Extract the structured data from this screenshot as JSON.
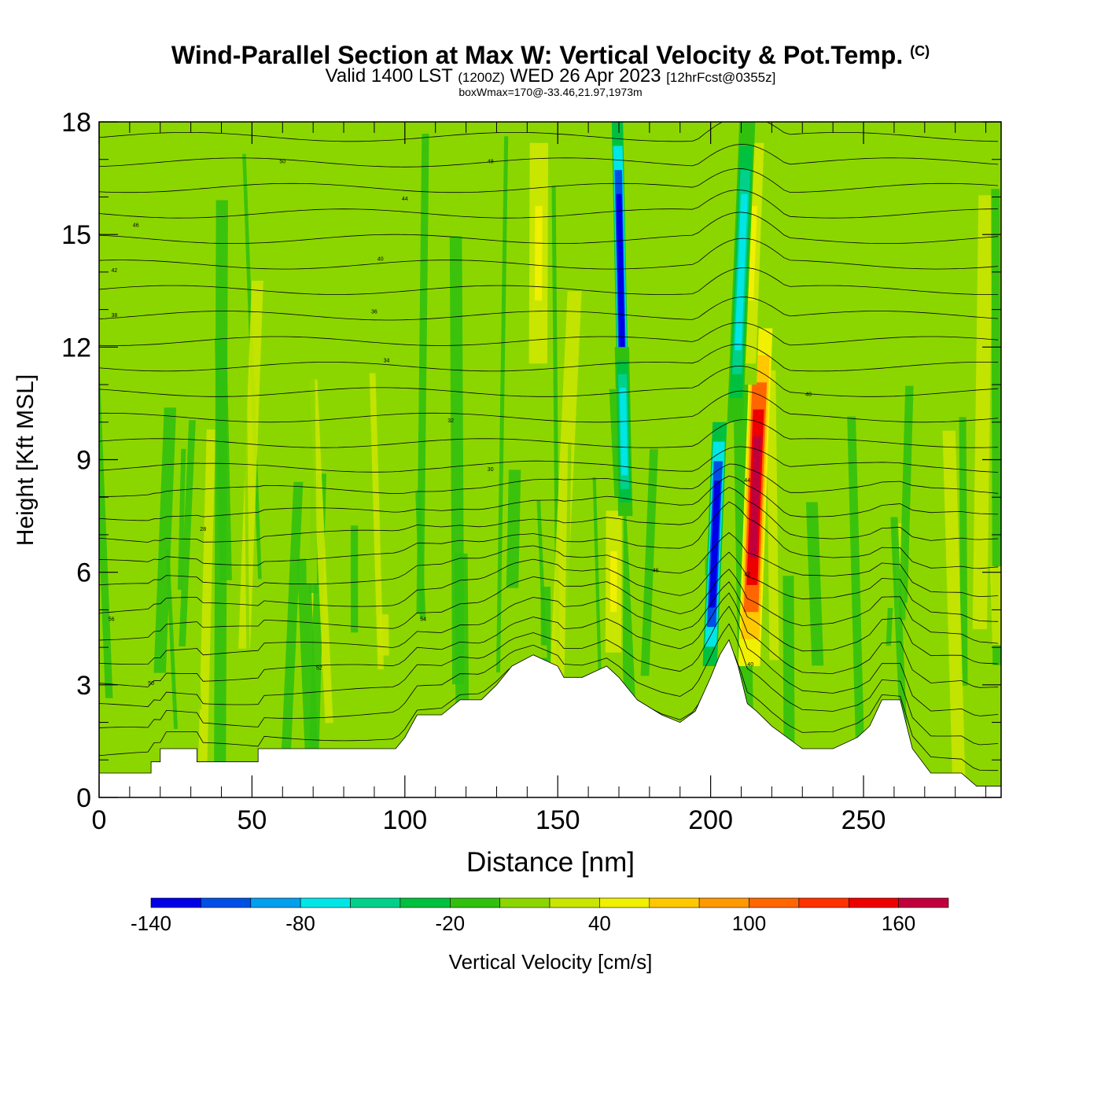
{
  "title": {
    "main": "Wind-Parallel Section at Max W: Vertical Velocity & Pot.Temp.",
    "copyright": "(C)",
    "valid_prefix": "Valid 1400 LST",
    "utc": "(1200Z)",
    "valid_date": "WED 26 Apr 2023",
    "forecast": "[12hrFcst@0355z]",
    "box_info": "boxWmax=170@-33.46,21.97,1973m"
  },
  "chart_data": {
    "type": "heatmap",
    "title": "Wind-Parallel Section at Max W: Vertical Velocity & Pot.Temp.",
    "xlabel": "Distance [nm]",
    "ylabel": "Height [Kft MSL]",
    "xlim": [
      0,
      295
    ],
    "ylim": [
      0,
      18
    ],
    "xticks": [
      "0",
      "50",
      "100",
      "150",
      "200",
      "250"
    ],
    "xtick_values": [
      0,
      50,
      100,
      150,
      200,
      250
    ],
    "yticks": [
      "0",
      "3",
      "6",
      "9",
      "12",
      "15",
      "18"
    ],
    "ytick_values": [
      0,
      3,
      6,
      9,
      12,
      15,
      18
    ],
    "background_w": 10,
    "updraft_features": [
      {
        "name": "updraft-max",
        "x_center_at_0kft": 211,
        "lean_nm_per_kft": 0.45,
        "width_nm": 6,
        "z_bottom_kft": 3.5,
        "z_top_kft": 12.5,
        "w_cm_s": 170
      },
      {
        "name": "updraft-upper-plume",
        "x_center_at_0kft": 207,
        "lean_nm_per_kft": 0.45,
        "width_nm": 5,
        "z_bottom_kft": 11,
        "z_top_kft": 18,
        "w_cm_s": 45
      },
      {
        "name": "updraft-west",
        "x_center_at_0kft": 168,
        "lean_nm_per_kft": 0.05,
        "width_nm": 5,
        "z_bottom_kft": 3.5,
        "z_top_kft": 8,
        "w_cm_s": 45
      },
      {
        "name": "updraft-central",
        "x_center_at_0kft": 143,
        "lean_nm_per_kft": 0.05,
        "width_nm": 6,
        "z_bottom_kft": 11,
        "z_top_kft": 18,
        "w_cm_s": 45
      }
    ],
    "downdraft_features": [
      {
        "name": "downdraft-tilted-band",
        "x_center_at_0kft": 198,
        "lean_nm_per_kft": 0.5,
        "width_nm": 3.5,
        "z_bottom_kft": 3.5,
        "z_top_kft": 10,
        "w_cm_s": -140
      },
      {
        "name": "downdraft-upper-east",
        "x_center_at_0kft": 203,
        "lean_nm_per_kft": 0.5,
        "width_nm": 4,
        "z_bottom_kft": 10,
        "z_top_kft": 18,
        "w_cm_s": -75
      },
      {
        "name": "downdraft-narrow-core",
        "x_center_at_0kft": 174,
        "lean_nm_per_kft": -0.25,
        "width_nm": 2.5,
        "z_bottom_kft": 10,
        "z_top_kft": 18,
        "w_cm_s": -140
      },
      {
        "name": "downdraft-narrow-core-lower",
        "x_center_at_0kft": 174,
        "lean_nm_per_kft": -0.25,
        "width_nm": 3.5,
        "z_bottom_kft": 7.5,
        "z_top_kft": 12,
        "w_cm_s": -70
      }
    ],
    "terrain_kft": {
      "x": [
        0,
        17,
        17,
        20,
        20,
        32,
        32,
        52,
        52,
        83,
        97,
        100,
        102,
        104,
        108,
        112,
        118,
        125,
        130,
        135,
        142,
        150,
        152,
        158,
        166,
        170,
        176,
        184,
        190,
        195,
        200,
        203,
        206,
        209,
        212,
        215,
        220,
        230,
        240,
        248,
        252,
        256,
        262,
        266,
        272,
        282,
        287,
        295
      ],
      "z": [
        0.65,
        0.65,
        0.95,
        0.95,
        1.3,
        1.3,
        0.95,
        0.95,
        1.3,
        1.3,
        1.3,
        1.6,
        1.9,
        2.2,
        2.2,
        2.2,
        2.6,
        2.6,
        3.0,
        3.5,
        3.8,
        3.5,
        3.2,
        3.2,
        3.5,
        3.2,
        2.6,
        2.2,
        2.0,
        2.3,
        3.2,
        3.8,
        4.2,
        3.5,
        2.5,
        2.3,
        1.9,
        1.3,
        1.3,
        1.6,
        1.9,
        2.6,
        2.6,
        1.3,
        0.65,
        0.65,
        0.3,
        0.3
      ]
    },
    "isentrope_labels": [
      "50",
      "48",
      "46",
      "44",
      "42",
      "40",
      "38",
      "36",
      "34",
      "32",
      "30",
      "28",
      "56",
      "54",
      "52"
    ],
    "colorbar": {
      "label": "Vertical Velocity [cm/s]",
      "levels": [
        -140,
        -120,
        -100,
        -80,
        -60,
        -40,
        -20,
        0,
        20,
        40,
        60,
        80,
        100,
        120,
        140,
        160,
        180
      ],
      "colors": [
        "#0000e6",
        "#0050e6",
        "#00a0ee",
        "#00e6e6",
        "#00d08a",
        "#00c040",
        "#32c00e",
        "#8cd600",
        "#c8e600",
        "#f0f000",
        "#ffc800",
        "#ff9900",
        "#ff6600",
        "#ff3300",
        "#ee0000",
        "#c0003c"
      ],
      "tick_labels": [
        "-140",
        "-80",
        "-20",
        "40",
        "100",
        "160"
      ],
      "tick_values": [
        -140,
        -80,
        -20,
        40,
        100,
        160
      ]
    }
  }
}
